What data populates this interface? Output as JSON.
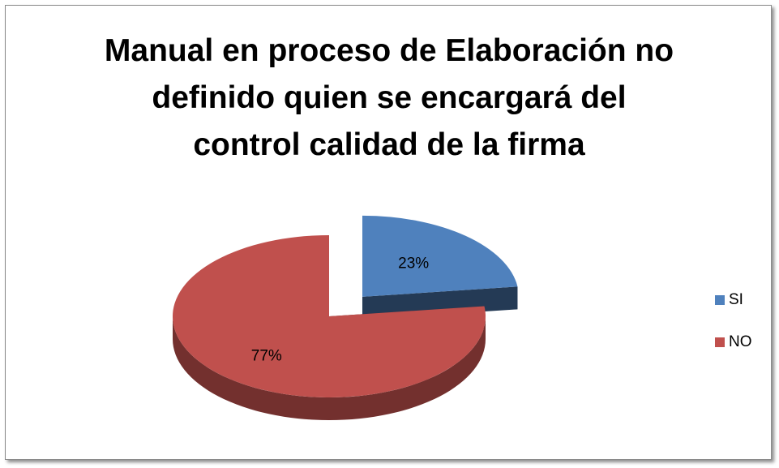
{
  "chart_data": {
    "type": "pie3d",
    "title": "Manual en proceso de Elaboración no\ndefinido quien se encargará del\ncontrol calidad de la firma",
    "categories": [
      "SI",
      "NO"
    ],
    "values": [
      23,
      77
    ],
    "value_labels": [
      "23%",
      "77%"
    ],
    "colors": [
      "#4f81bd",
      "#c0504d"
    ],
    "exploded": [
      true,
      false
    ],
    "legend": "right"
  }
}
